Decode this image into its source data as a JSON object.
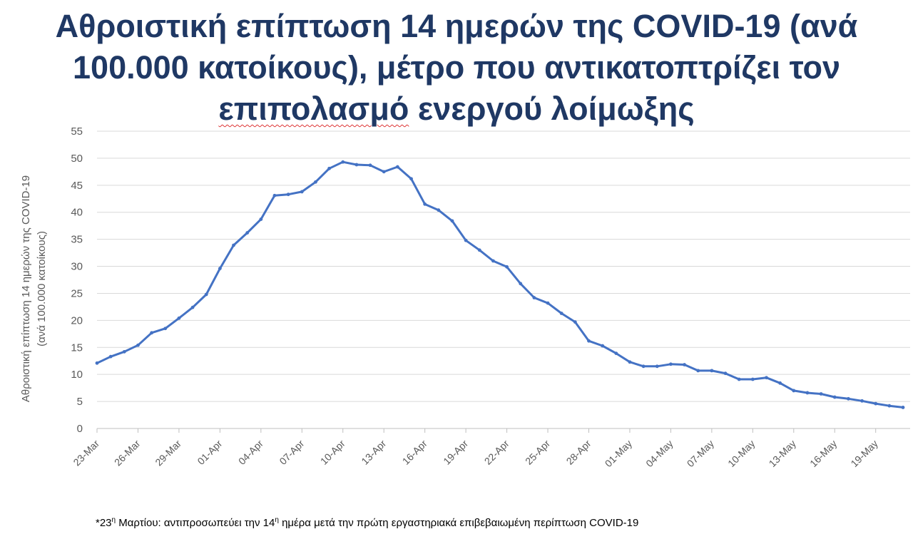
{
  "chart_data": {
    "type": "line",
    "title_line1": "Αθροιστική επίπτωση 14 ημερών της COVID-19 (ανά",
    "title_line2": "100.000 κατοίκους), μέτρο που αντικατοπτρίζει τον",
    "title_line3_word1": "επιπολασμό",
    "title_line3_rest": " ενεργού λοίμωξης",
    "ylabel_line1": "Αθροιστική επίπτωση 14 ημερών της COVID-19",
    "ylabel_line2": "(ανά 100.000 κατοίκους)",
    "ylim": [
      0,
      55
    ],
    "yticks": [
      0,
      5,
      10,
      15,
      20,
      25,
      30,
      35,
      40,
      45,
      50,
      55
    ],
    "grid": true,
    "line_color": "#4472c4",
    "x_tick_labels": [
      "23-Mar",
      "26-Mar",
      "29-Mar",
      "01-Apr",
      "04-Apr",
      "07-Apr",
      "10-Apr",
      "13-Apr",
      "16-Apr",
      "19-Apr",
      "22-Apr",
      "25-Apr",
      "28-Apr",
      "01-May",
      "04-May",
      "07-May",
      "10-May",
      "13-May",
      "16-May",
      "19-May"
    ],
    "x_start_date": "23-Mar",
    "x_end_date": "20-May",
    "values": [
      12.1,
      13.3,
      14.2,
      15.4,
      17.7,
      18.5,
      20.4,
      22.4,
      24.8,
      29.6,
      33.9,
      36.2,
      38.7,
      43.1,
      43.3,
      43.8,
      45.6,
      48.1,
      49.3,
      48.8,
      48.7,
      47.5,
      48.4,
      46.2,
      41.5,
      40.4,
      38.4,
      34.8,
      33.0,
      31.0,
      29.9,
      26.8,
      24.2,
      23.2,
      21.3,
      19.7,
      16.2,
      15.3,
      13.9,
      12.3,
      11.5,
      11.5,
      11.9,
      11.8,
      10.7,
      10.7,
      10.2,
      9.1,
      9.1,
      9.4,
      8.4,
      7.0,
      6.6,
      6.4,
      5.8,
      5.5,
      5.1,
      4.6,
      4.2,
      3.9
    ]
  },
  "footnote": {
    "prefix": "*23",
    "sup1": "η",
    "middle": " Μαρτίου: αντιπροσωπεύει την 14",
    "sup2": "η",
    "suffix": " ημέρα μετά την πρώτη εργαστηριακά επιβεβαιωμένη περίπτωση COVID-19"
  }
}
